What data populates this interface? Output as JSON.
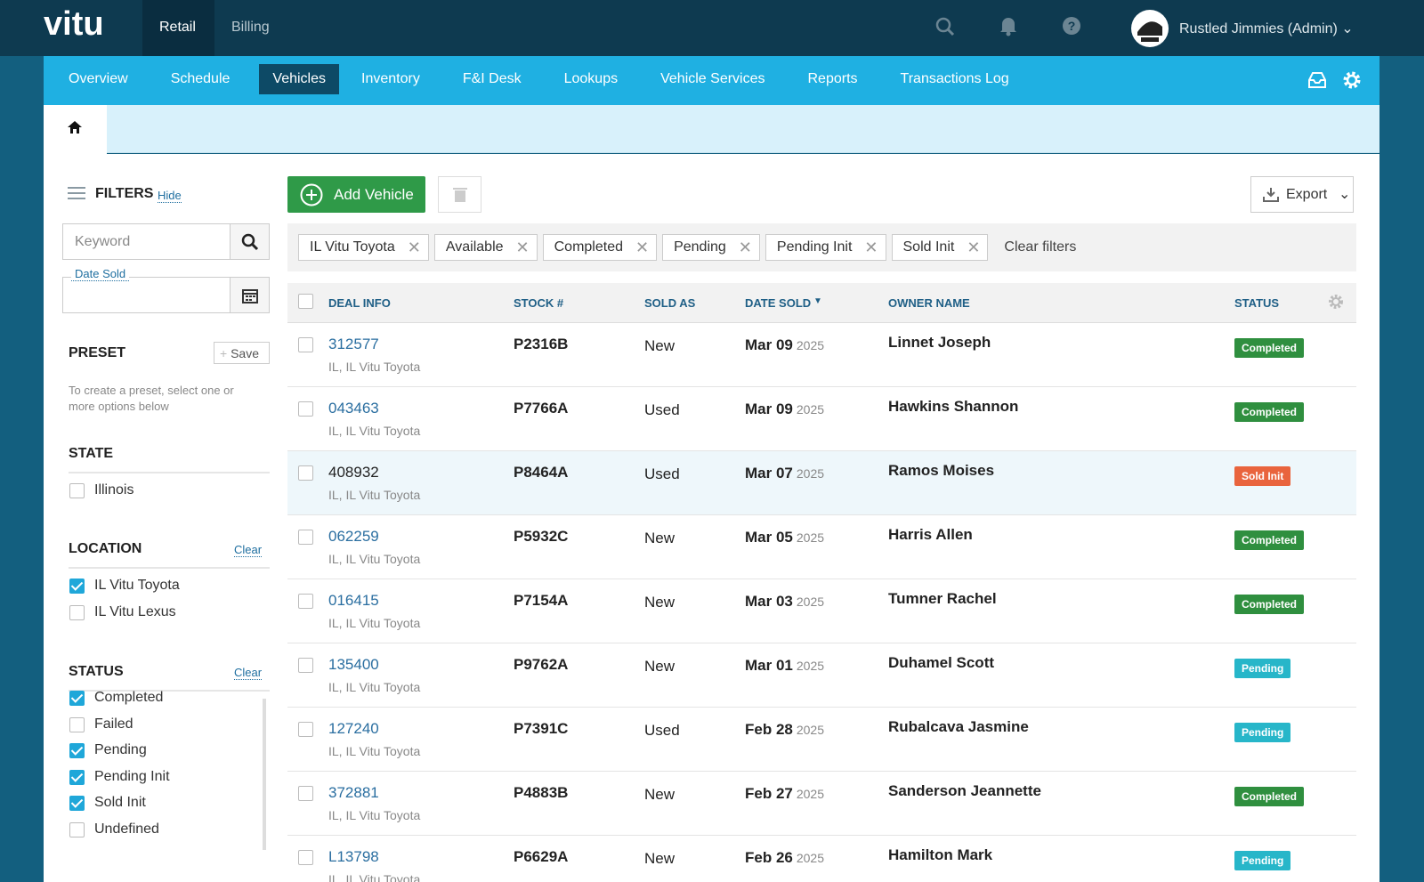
{
  "topbar": {
    "logo": "vitu",
    "tabs": [
      "Retail",
      "Billing"
    ],
    "user": "Rustled Jimmies (Admin)"
  },
  "nav": {
    "items": [
      "Overview",
      "Schedule",
      "Vehicles",
      "Inventory",
      "F&I Desk",
      "Lookups",
      "Vehicle Services",
      "Reports",
      "Transactions Log"
    ]
  },
  "filters": {
    "title": "FILTERS",
    "hide": "Hide",
    "keyword_placeholder": "Keyword",
    "date_label": "Date Sold",
    "preset": {
      "title": "PRESET",
      "save": "Save",
      "hint": "To create a preset, select one or more options below"
    },
    "sections": [
      {
        "title": "STATE",
        "options": [
          {
            "label": "Illinois",
            "checked": false
          }
        ]
      },
      {
        "title": "LOCATION",
        "clear": "Clear",
        "options": [
          {
            "label": "IL Vitu Toyota",
            "checked": true
          },
          {
            "label": "IL Vitu Lexus",
            "checked": false
          }
        ]
      },
      {
        "title": "STATUS",
        "clear": "Clear",
        "options": [
          {
            "label": "Completed",
            "checked": true
          },
          {
            "label": "Failed",
            "checked": false
          },
          {
            "label": "Pending",
            "checked": true
          },
          {
            "label": "Pending Init",
            "checked": true
          },
          {
            "label": "Sold Init",
            "checked": true
          },
          {
            "label": "Undefined",
            "checked": false
          }
        ]
      }
    ]
  },
  "toolbar": {
    "add": "Add Vehicle",
    "export": "Export",
    "chips": [
      "IL Vitu Toyota",
      "Available",
      "Completed",
      "Pending",
      "Pending Init",
      "Sold Init"
    ],
    "clear": "Clear filters"
  },
  "table": {
    "columns": [
      "DEAL INFO",
      "STOCK #",
      "SOLD AS",
      "DATE SOLD",
      "OWNER NAME",
      "STATUS"
    ],
    "rows": [
      {
        "deal": "312577",
        "location": "IL, IL Vitu Toyota",
        "stock": "P2316B",
        "sold_as": "New",
        "date": "Mar 09",
        "year": "2025",
        "owner": "Linnet Joseph",
        "status": "Completed",
        "status_color": "#2f8f3f"
      },
      {
        "deal": "043463",
        "location": "IL, IL Vitu Toyota",
        "stock": "P7766A",
        "sold_as": "Used",
        "date": "Mar 09",
        "year": "2025",
        "owner": "Hawkins Shannon",
        "status": "Completed",
        "status_color": "#2f8f3f"
      },
      {
        "deal": "408932",
        "location": "IL, IL Vitu Toyota",
        "stock": "P8464A",
        "sold_as": "Used",
        "date": "Mar 07",
        "year": "2025",
        "owner": "Ramos Moises",
        "status": "Sold Init",
        "status_color": "#e9643d"
      },
      {
        "deal": "062259",
        "location": "IL, IL Vitu Toyota",
        "stock": "P5932C",
        "sold_as": "New",
        "date": "Mar 05",
        "year": "2025",
        "owner": "Harris Allen",
        "status": "Completed",
        "status_color": "#2f8f3f"
      },
      {
        "deal": "016415",
        "location": "IL, IL Vitu Toyota",
        "stock": "P7154A",
        "sold_as": "New",
        "date": "Mar 03",
        "year": "2025",
        "owner": "Tumner Rachel",
        "status": "Completed",
        "status_color": "#2f8f3f"
      },
      {
        "deal": "135400",
        "location": "IL, IL Vitu Toyota",
        "stock": "P9762A",
        "sold_as": "New",
        "date": "Mar 01",
        "year": "2025",
        "owner": "Duhamel Scott",
        "status": "Pending",
        "status_color": "#27b6c9"
      },
      {
        "deal": "127240",
        "location": "IL, IL Vitu Toyota",
        "stock": "P7391C",
        "sold_as": "Used",
        "date": "Feb 28",
        "year": "2025",
        "owner": "Rubalcava Jasmine",
        "status": "Pending",
        "status_color": "#27b6c9"
      },
      {
        "deal": "372881",
        "location": "IL, IL Vitu Toyota",
        "stock": "P4883B",
        "sold_as": "New",
        "date": "Feb 27",
        "year": "2025",
        "owner": "Sanderson Jeannette",
        "status": "Completed",
        "status_color": "#2f8f3f"
      },
      {
        "deal": "L13798",
        "location": "IL, IL Vitu Toyota",
        "stock": "P6629A",
        "sold_as": "New",
        "date": "Feb 26",
        "year": "2025",
        "owner": "Hamilton Mark",
        "status": "Pending",
        "status_color": "#27b6c9"
      }
    ]
  }
}
